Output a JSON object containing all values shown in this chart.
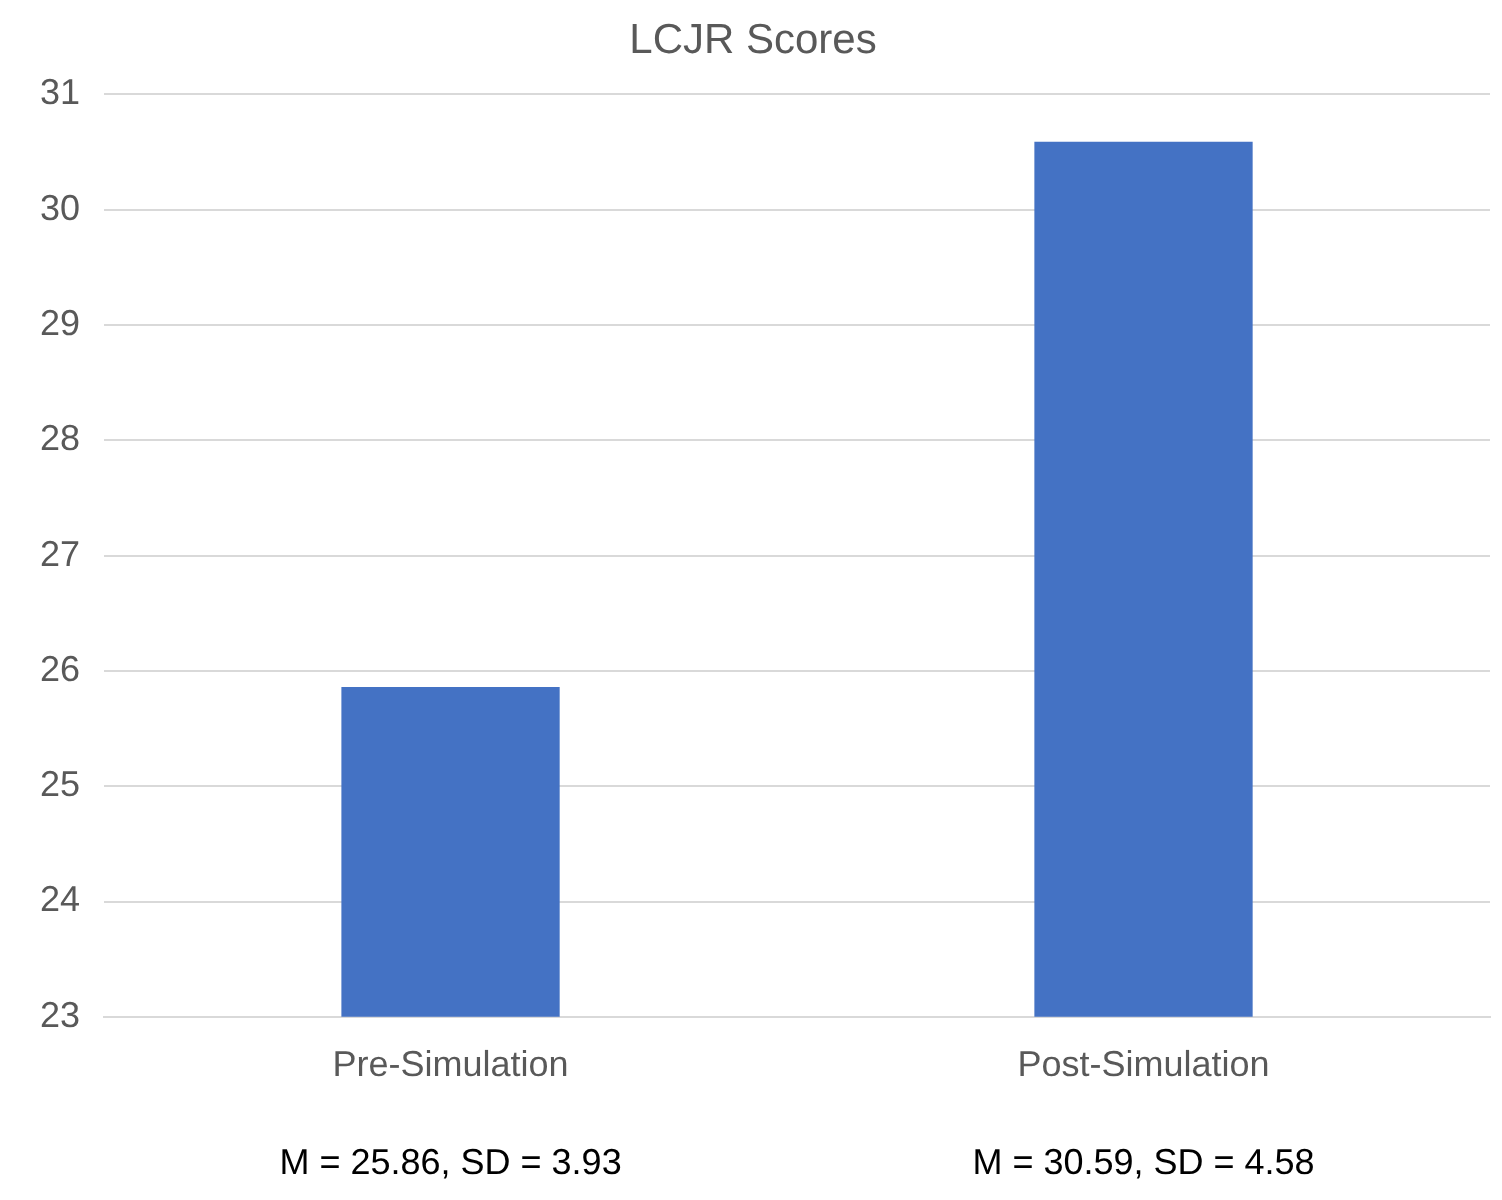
{
  "chart_data": {
    "type": "bar",
    "title": "LCJR Scores",
    "categories": [
      "Pre-Simulation",
      "Post-Simulation"
    ],
    "values": [
      25.86,
      30.59
    ],
    "color": "#4472c4",
    "ylim": [
      23,
      31
    ],
    "yticks": [
      23,
      24,
      25,
      26,
      27,
      28,
      29,
      30,
      31
    ],
    "grid": "y",
    "annotations": [
      "M = 25.86, SD = 3.93",
      "M = 30.59, SD = 4.58"
    ]
  }
}
